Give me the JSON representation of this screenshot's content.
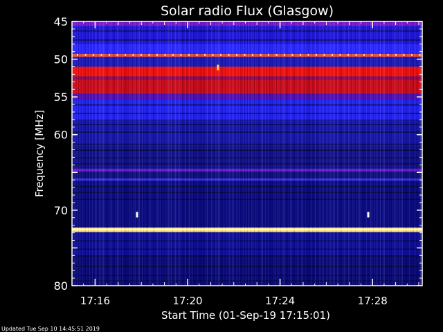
{
  "chart_data": {
    "type": "heatmap",
    "title": "Solar radio Flux (Glasgow)",
    "xlabel": "Start Time (01-Sep-19 17:15:01)",
    "ylabel": "Frequency [MHz]",
    "footer": "Updated Tue Sep 10 14:45:51 2019",
    "x_range_minutes": [
      15.0,
      30.15
    ],
    "y_range": [
      45,
      80
    ],
    "x_ticks": [
      {
        "label": "17:16",
        "minute": 16
      },
      {
        "label": "17:20",
        "minute": 20
      },
      {
        "label": "17:24",
        "minute": 24
      },
      {
        "label": "17:28",
        "minute": 28
      }
    ],
    "y_ticks": [
      45,
      50,
      55,
      60,
      65,
      70,
      75,
      80
    ],
    "y_tick_labels": [
      "45",
      "50",
      "55",
      "60",
      "70",
      "80"
    ],
    "bands": [
      {
        "from": 45.0,
        "to": 45.6,
        "color": "#7a1ad0"
      },
      {
        "from": 45.6,
        "to": 48.0,
        "color": "#1f18d8"
      },
      {
        "from": 48.0,
        "to": 49.3,
        "color": "#2a28ff"
      },
      {
        "from": 49.3,
        "to": 49.7,
        "color": "#e85040"
      },
      {
        "from": 49.7,
        "to": 51.0,
        "color": "#1c1ab8"
      },
      {
        "from": 51.0,
        "to": 52.3,
        "color": "#ee1010"
      },
      {
        "from": 52.3,
        "to": 52.7,
        "color": "#8a0a5a"
      },
      {
        "from": 52.7,
        "to": 54.6,
        "color": "#c80c1c"
      },
      {
        "from": 54.6,
        "to": 55.3,
        "color": "#5010b0"
      },
      {
        "from": 55.3,
        "to": 58.0,
        "color": "#2222f0"
      },
      {
        "from": 58.0,
        "to": 61.5,
        "color": "#1616a8"
      },
      {
        "from": 61.5,
        "to": 64.5,
        "color": "#12128a"
      },
      {
        "from": 64.5,
        "to": 64.9,
        "color": "#6a1ad0"
      },
      {
        "from": 64.9,
        "to": 65.8,
        "color": "#10107a"
      },
      {
        "from": 65.8,
        "to": 66.1,
        "color": "#3a30e8"
      },
      {
        "from": 66.1,
        "to": 72.3,
        "color": "#0c0c82"
      },
      {
        "from": 72.3,
        "to": 72.9,
        "color": "#ffe070"
      },
      {
        "from": 72.9,
        "to": 76.0,
        "color": "#0e0e98"
      },
      {
        "from": 76.0,
        "to": 80.0,
        "color": "#0a0a78"
      }
    ],
    "dark_lines": [
      46.2,
      47.4,
      56.0,
      57.1,
      58.6,
      59.6,
      61.2,
      62.0,
      63.0,
      63.8,
      66.8,
      67.6,
      68.5,
      74.0,
      75.1,
      76.0,
      77.4,
      78.6,
      79.3
    ],
    "events": [
      {
        "minute": 17.8,
        "freq": 70.6,
        "color": "#ffffff"
      },
      {
        "minute": 21.3,
        "freq": 51.1,
        "color": "#ffd060"
      },
      {
        "minute": 27.8,
        "freq": 70.6,
        "color": "#ffffff"
      }
    ]
  }
}
